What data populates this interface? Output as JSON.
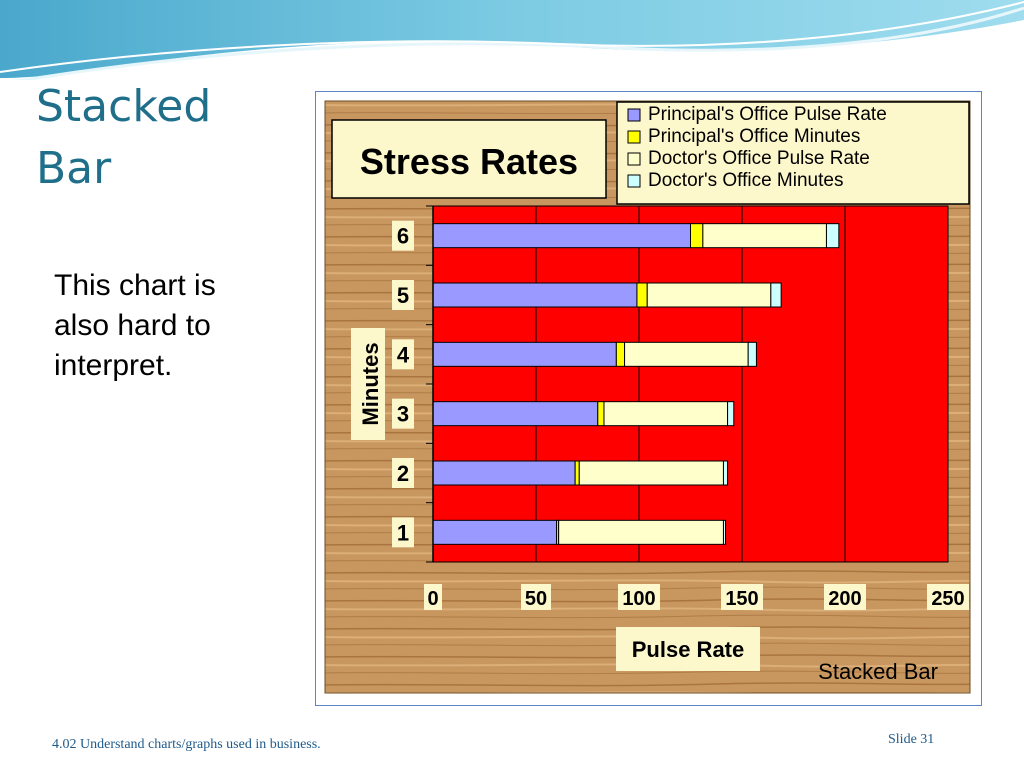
{
  "slide": {
    "title_line1": "Stacked",
    "title_line2": "Bar",
    "body_line1": "This chart is",
    "body_line2": "also hard to",
    "body_line3": "interpret.",
    "footer_left": "4.02 Understand charts/graphs used in business.",
    "footer_right": "Slide 31"
  },
  "colors": {
    "title": "#1f6f8b",
    "plot_background": "#ff0000",
    "wood": "#c8965f",
    "label_box": "#fdf7cc"
  },
  "chart_data": {
    "type": "bar",
    "orientation": "horizontal",
    "stacked": true,
    "title": "Stress Rates",
    "subtitle": "Stacked Bar",
    "xlabel": "Pulse Rate",
    "ylabel": "Minutes",
    "categories": [
      "1",
      "2",
      "3",
      "4",
      "5",
      "6"
    ],
    "xlim": [
      0,
      250
    ],
    "x_ticks": [
      "0",
      "50",
      "100",
      "150",
      "200",
      "250"
    ],
    "grid": true,
    "legend_position": "top-right",
    "series": [
      {
        "name": "Principal's Office Pulse Rate",
        "values": [
          60,
          69,
          80,
          89,
          99,
          125
        ],
        "color": "#9999ff"
      },
      {
        "name": "Principal's Office Minutes",
        "values": [
          1,
          2,
          3,
          4,
          5,
          6
        ],
        "color": "#ffff00"
      },
      {
        "name": "Doctor's Office Pulse Rate",
        "values": [
          80,
          70,
          60,
          60,
          60,
          60
        ],
        "color": "#ffffcc"
      },
      {
        "name": "Doctor's Office Minutes",
        "values": [
          1,
          2,
          3,
          4,
          5,
          6
        ],
        "color": "#ccffff"
      }
    ]
  }
}
